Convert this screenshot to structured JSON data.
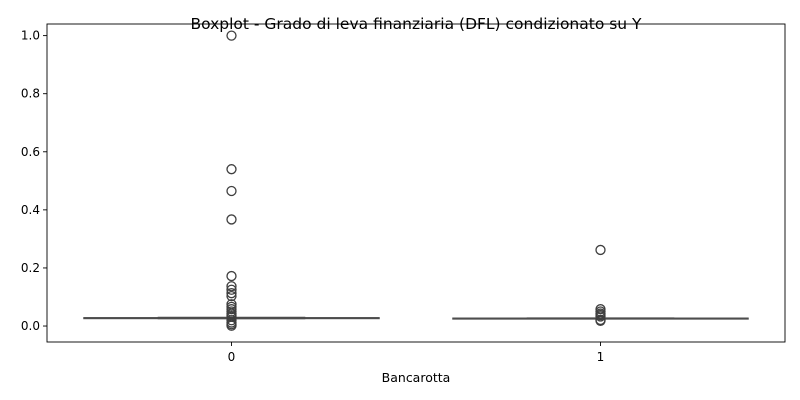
{
  "chart_data": {
    "type": "boxplot",
    "title": "Boxplot - Grado di leva finanziaria (DFL) condizionato su Y",
    "xlabel": "Bancarotta",
    "ylabel": "",
    "categories": [
      "0",
      "1"
    ],
    "ylim": [
      -0.055,
      1.04
    ],
    "yticks": [
      0.0,
      0.2,
      0.4,
      0.6,
      0.8,
      1.0
    ],
    "ytick_labels": [
      "0.0",
      "0.2",
      "0.4",
      "0.6",
      "0.8",
      "1.0"
    ],
    "grid": false,
    "colors": {
      "box_fill": "#d4d4d4",
      "box_edge": "#4d4d4d",
      "outlier": "#3f3f3f"
    },
    "boxes": [
      {
        "category": "0",
        "q1": 0.0265,
        "median": 0.0275,
        "q3": 0.0285,
        "whisker_low": 0.0255,
        "whisker_high": 0.0295,
        "outliers": [
          1.0,
          0.54,
          0.465,
          0.367,
          0.172,
          0.137,
          0.125,
          0.113,
          0.103,
          0.075,
          0.066,
          0.058,
          0.05,
          0.043,
          0.037,
          0.032,
          0.02,
          0.012,
          0.006,
          0.001
        ]
      },
      {
        "category": "1",
        "q1": 0.0255,
        "median": 0.0262,
        "q3": 0.027,
        "whisker_low": 0.0245,
        "whisker_high": 0.0275,
        "outliers": [
          0.262,
          0.058,
          0.05,
          0.043,
          0.038,
          0.033,
          0.021,
          0.018
        ]
      }
    ]
  }
}
